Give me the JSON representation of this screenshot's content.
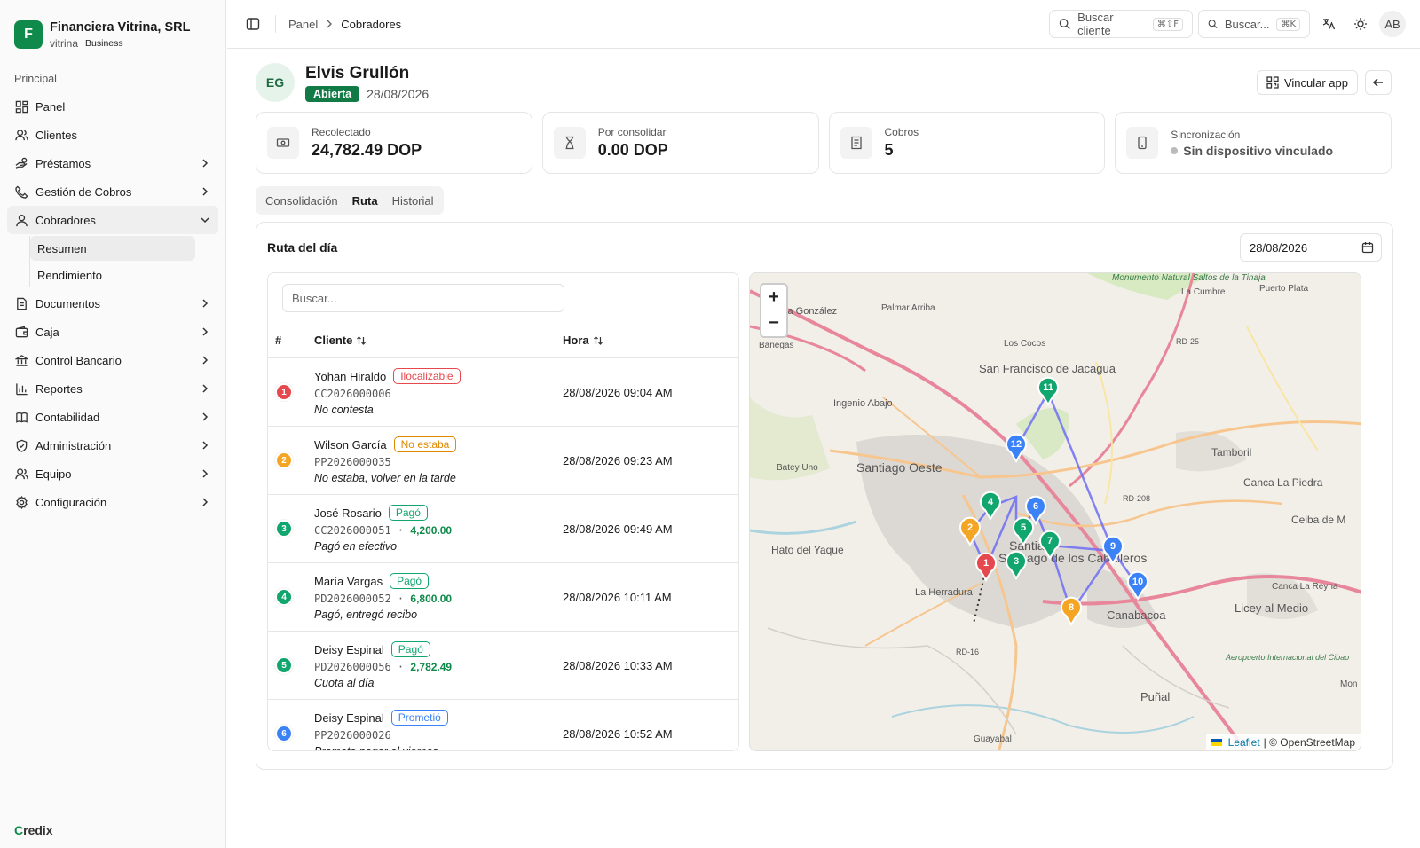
{
  "org": {
    "logo_letter": "F",
    "name": "Financiera Vitrina, SRL",
    "slug": "vitrina",
    "plan": "Business"
  },
  "sidebar": {
    "section": "Principal",
    "items": [
      {
        "label": "Panel",
        "icon": "dashboard-icon"
      },
      {
        "label": "Clientes",
        "icon": "users-icon"
      },
      {
        "label": "Préstamos",
        "icon": "coins-icon",
        "chevron": true
      },
      {
        "label": "Gestión de Cobros",
        "icon": "phone-icon",
        "chevron": true
      },
      {
        "label": "Cobradores",
        "icon": "user-icon",
        "chevron": true,
        "open": true
      },
      {
        "label": "Documentos",
        "icon": "document-icon",
        "chevron": true
      },
      {
        "label": "Caja",
        "icon": "wallet-icon",
        "chevron": true
      },
      {
        "label": "Control Bancario",
        "icon": "bank-icon",
        "chevron": true
      },
      {
        "label": "Reportes",
        "icon": "chart-icon",
        "chevron": true
      },
      {
        "label": "Contabilidad",
        "icon": "book-icon",
        "chevron": true
      },
      {
        "label": "Administración",
        "icon": "shield-icon",
        "chevron": true
      },
      {
        "label": "Equipo",
        "icon": "team-icon",
        "chevron": true
      },
      {
        "label": "Configuración",
        "icon": "gear-icon",
        "chevron": true
      }
    ],
    "sub_items": [
      {
        "label": "Resumen",
        "active": true
      },
      {
        "label": "Rendimiento",
        "active": false
      }
    ],
    "footer_brand_mark": "C",
    "footer_brand_rest": "redix"
  },
  "topbar": {
    "breadcrumb": [
      "Panel",
      "Cobradores"
    ],
    "search_client": "Buscar cliente",
    "search_client_kbd": "⌘⇧F",
    "search_global": "Buscar...",
    "search_global_kbd": "⌘K",
    "user_initials": "AB"
  },
  "collector": {
    "initials": "EG",
    "name": "Elvis Grullón",
    "status": "Abierta",
    "date": "28/08/2026",
    "link_app_label": "Vincular app"
  },
  "stats": [
    {
      "label": "Recolectado",
      "value": "24,782.49 DOP",
      "icon": "banknote-icon"
    },
    {
      "label": "Por consolidar",
      "value": "0.00 DOP",
      "icon": "hourglass-icon"
    },
    {
      "label": "Cobros",
      "value": "5",
      "icon": "receipt-icon"
    },
    {
      "label": "Sincronización",
      "value": "Sin dispositivo vinculado",
      "icon": "smartphone-icon"
    }
  ],
  "tabs": [
    "Consolidación",
    "Ruta",
    "Historial"
  ],
  "active_tab": "Ruta",
  "route": {
    "title": "Ruta del día",
    "date": "28/08/2026",
    "search_placeholder": "Buscar...",
    "columns": {
      "num": "#",
      "client": "Cliente",
      "time": "Hora"
    },
    "rows": [
      {
        "n": "1",
        "color": "#e5484d",
        "name": "Yohan Hiraldo",
        "tag": "Ilocalizable",
        "tag_color": "#e5484d",
        "code": "CC2026000006",
        "amount": "",
        "note": "No contesta",
        "time": "28/08/2026 09:04 AM"
      },
      {
        "n": "2",
        "color": "#f5a524",
        "name": "Wilson García",
        "tag": "No estaba",
        "tag_color": "#e08a00",
        "code": "PP2026000035",
        "amount": "",
        "note": "No estaba, volver en la tarde",
        "time": "28/08/2026 09:23 AM"
      },
      {
        "n": "3",
        "color": "#12a66f",
        "name": "José Rosario",
        "tag": "Pagó",
        "tag_color": "#12a66f",
        "code": "CC2026000051",
        "amount": "4,200.00",
        "note": "Pagó en efectivo",
        "time": "28/08/2026 09:49 AM"
      },
      {
        "n": "4",
        "color": "#12a66f",
        "name": "María Vargas",
        "tag": "Pagó",
        "tag_color": "#12a66f",
        "code": "PD2026000052",
        "amount": "6,800.00",
        "note": "Pagó, entregó recibo",
        "time": "28/08/2026 10:11 AM"
      },
      {
        "n": "5",
        "color": "#12a66f",
        "name": "Deisy Espinal",
        "tag": "Pagó",
        "tag_color": "#12a66f",
        "code": "PD2026000056",
        "amount": "2,782.49",
        "note": "Cuota al día",
        "time": "28/08/2026 10:33 AM"
      },
      {
        "n": "6",
        "color": "#3b82f6",
        "name": "Deisy Espinal",
        "tag": "Prometió",
        "tag_color": "#3b82f6",
        "code": "PP2026000026",
        "amount": "",
        "note": "Promete pagar el viernes",
        "time": "28/08/2026 10:52 AM"
      }
    ]
  },
  "map": {
    "zoom_in": "+",
    "zoom_out": "−",
    "attribution_leaflet": "Leaflet",
    "attribution_rest": "| © OpenStreetMap",
    "places": [
      "Villa González",
      "Palmar Arriba",
      "Monumento Natural Saltos de la Tinaja",
      "La Cumbre",
      "Puerto Plata",
      "Banegas",
      "Los Cocos",
      "RD-25",
      "San Francisco de Jacagua",
      "Santiago",
      "Ingenio Abajo",
      "Tamboril",
      "Santiago Oeste",
      "Batey Uno",
      "Canca La Piedra",
      "RD-208",
      "Ceiba de M",
      "Hato del Yaque",
      "Santiago de los Caballeros",
      "La Herradura",
      "Canca La Reyna",
      "Licey al Medio",
      "Canabacoa",
      "RD-16",
      "Puñal",
      "Aeropuerto Internacional del Cibao",
      "Guayabal",
      "Mon"
    ],
    "markers": [
      {
        "n": "1",
        "color": "#e5484d"
      },
      {
        "n": "2",
        "color": "#f5a524"
      },
      {
        "n": "3",
        "color": "#12a66f"
      },
      {
        "n": "4",
        "color": "#12a66f"
      },
      {
        "n": "5",
        "color": "#12a66f"
      },
      {
        "n": "6",
        "color": "#3b82f6"
      },
      {
        "n": "7",
        "color": "#12a66f"
      },
      {
        "n": "8",
        "color": "#f5a524"
      },
      {
        "n": "9",
        "color": "#3b82f6"
      },
      {
        "n": "10",
        "color": "#3b82f6"
      },
      {
        "n": "11",
        "color": "#12a66f"
      },
      {
        "n": "12",
        "color": "#3b82f6"
      }
    ]
  }
}
